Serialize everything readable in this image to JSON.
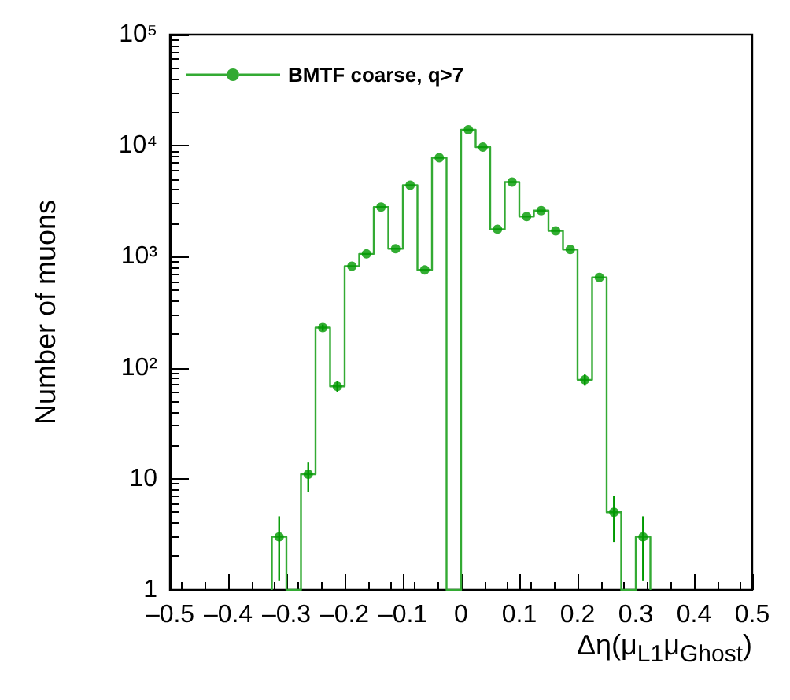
{
  "chart_data": {
    "type": "histogram",
    "xlabel": "Δη(μ$_{L1}$μ$_{Ghost}$)",
    "ylabel": "Number of muons",
    "bins": [
      -0.325,
      -0.3,
      -0.275,
      -0.25,
      -0.225,
      -0.2,
      -0.175,
      -0.15,
      -0.125,
      -0.1,
      -0.075,
      -0.05,
      -0.025,
      0,
      0.025,
      0.05,
      0.075,
      0.1,
      0.125,
      0.15,
      0.175,
      0.2,
      0.225,
      0.25,
      0.275,
      0.3,
      0.325
    ],
    "series": [
      {
        "name": "BMTF coarse, q>7",
        "color": "#33aa33",
        "values": [
          3,
          null,
          11,
          230,
          68,
          820,
          1060,
          2800,
          1180,
          4400,
          760,
          7800,
          null,
          13900,
          9700,
          1770,
          4700,
          2300,
          2600,
          1710,
          1160,
          78,
          650,
          5,
          null,
          3
        ]
      },
      {
        "type": "scatter",
        "color": "#009900",
        "x": [
          -0.3125,
          -0.2625,
          -0.2375,
          -0.2125,
          -0.1875,
          -0.1625,
          -0.1375,
          -0.1125,
          -0.0875,
          -0.0625,
          -0.0375,
          0.0125,
          0.0375,
          0.0625,
          0.0875,
          0.1125,
          0.1375,
          0.1625,
          0.1875,
          0.2125,
          0.2375,
          0.2625,
          0.3125
        ],
        "values": [
          3,
          11,
          230,
          68,
          820,
          1060,
          2800,
          1180,
          4400,
          760,
          7800,
          13900,
          9700,
          1770,
          4700,
          2300,
          2600,
          1710,
          1160,
          78,
          650,
          5,
          3
        ],
        "errors": [
          [
            1.2,
            4.6
          ],
          [
            7.6,
            14
          ],
          15,
          8,
          null,
          null,
          null,
          null,
          null,
          null,
          null,
          null,
          null,
          null,
          null,
          null,
          null,
          null,
          null,
          9,
          null,
          [
            2.7,
            7
          ],
          [
            1.2,
            4.6
          ]
        ]
      }
    ],
    "xlim": [
      -0.5,
      0.5
    ],
    "xticks": [
      {
        "value": -0.5,
        "label": "–0.5"
      },
      {
        "value": -0.4,
        "label": "–0.4"
      },
      {
        "value": -0.3,
        "label": "–0.3"
      },
      {
        "value": -0.2,
        "label": "–0.2"
      },
      {
        "value": -0.1,
        "label": "–0.1"
      },
      0,
      0.1,
      0.2,
      0.3,
      0.4,
      0.5
    ],
    "ylim": [
      1,
      100000
    ],
    "yticks": [
      1,
      10,
      {
        "value": 100,
        "label": "10²"
      },
      {
        "value": 1000,
        "label": "10³"
      },
      {
        "value": 10000,
        "label": "10⁴"
      },
      {
        "value": 100000,
        "label": "10⁵"
      }
    ],
    "log": "y",
    "grid": false,
    "legend": "top left",
    "marker": "circle",
    "line_style": "solid"
  }
}
